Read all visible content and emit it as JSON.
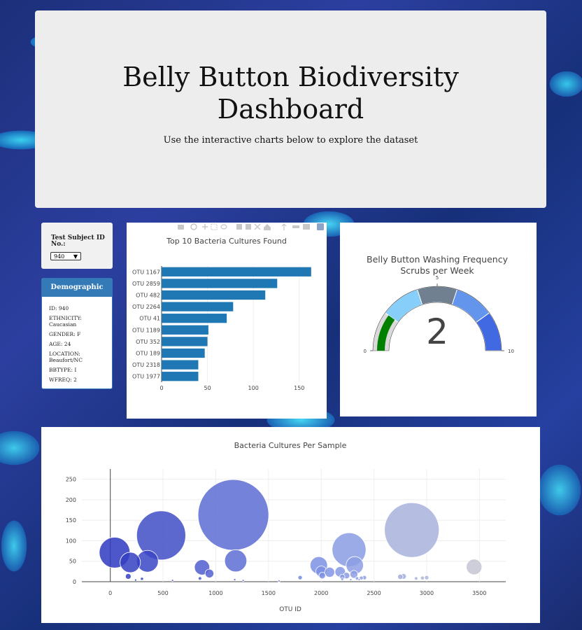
{
  "header": {
    "title": "Belly Button Biodiversity Dashboard",
    "subtitle": "Use the interactive charts below to explore the dataset"
  },
  "selector": {
    "label": "Test Subject ID No.:",
    "selected": "940"
  },
  "demographics": {
    "title": "Demographic Info",
    "rows": [
      "ID: 940",
      "ETHNICITY: Caucasian",
      "GENDER: F",
      "AGE: 24",
      "LOCATION: Beaufort/NC",
      "BBTYPE: I",
      "WFREQ: 2"
    ]
  },
  "colors": {
    "bar": "#1f77b4",
    "panel_head": "#337ab7",
    "gauge_needle": "#008000"
  },
  "chart_data": [
    {
      "type": "bar",
      "orientation": "horizontal",
      "title": "Top 10 Bacteria Cultures Found",
      "categories": [
        "OTU 1167",
        "OTU 2859",
        "OTU 482",
        "OTU 2264",
        "OTU 41",
        "OTU 1189",
        "OTU 352",
        "OTU 189",
        "OTU 2318",
        "OTU 1977"
      ],
      "values": [
        163,
        126,
        113,
        78,
        71,
        51,
        50,
        47,
        40,
        40
      ],
      "xticks": [
        0,
        50,
        100,
        150
      ],
      "xlim": [
        0,
        170
      ]
    },
    {
      "type": "gauge",
      "title": "Belly Button Washing Frequency",
      "subtitle": "Scrubs per Week",
      "value": 2,
      "range": [
        0,
        10
      ],
      "ticks": [
        0,
        5,
        10
      ],
      "steps": [
        {
          "range": [
            0,
            2
          ],
          "color": "#d9d9d9"
        },
        {
          "range": [
            2,
            4
          ],
          "color": "#87cefa"
        },
        {
          "range": [
            4,
            6
          ],
          "color": "#708090"
        },
        {
          "range": [
            6,
            8
          ],
          "color": "#6495ed"
        },
        {
          "range": [
            8,
            10
          ],
          "color": "#4169e1"
        }
      ]
    },
    {
      "type": "scatter",
      "title": "Bacteria Cultures Per Sample",
      "xlabel": "OTU ID",
      "xticks": [
        0,
        500,
        1000,
        1500,
        2000,
        2500,
        3000,
        3500
      ],
      "yticks": [
        0,
        50,
        100,
        150,
        200,
        250
      ],
      "xlim": [
        -270,
        3750
      ],
      "ylim": [
        0,
        275
      ],
      "points": [
        {
          "x": 41,
          "y": 71
        },
        {
          "x": 189,
          "y": 47
        },
        {
          "x": 352,
          "y": 50
        },
        {
          "x": 482,
          "y": 113
        },
        {
          "x": 1167,
          "y": 163
        },
        {
          "x": 1189,
          "y": 51
        },
        {
          "x": 2264,
          "y": 78
        },
        {
          "x": 2318,
          "y": 40
        },
        {
          "x": 2859,
          "y": 126
        },
        {
          "x": 1977,
          "y": 40
        },
        {
          "x": 3450,
          "y": 36
        },
        {
          "x": 870,
          "y": 35
        },
        {
          "x": 940,
          "y": 20
        },
        {
          "x": 2000,
          "y": 25
        },
        {
          "x": 2080,
          "y": 23
        },
        {
          "x": 2180,
          "y": 24
        },
        {
          "x": 2240,
          "y": 15
        },
        {
          "x": 2310,
          "y": 18
        },
        {
          "x": 2380,
          "y": 9
        },
        {
          "x": 2410,
          "y": 10
        },
        {
          "x": 170,
          "y": 13
        },
        {
          "x": 300,
          "y": 7
        },
        {
          "x": 850,
          "y": 8
        },
        {
          "x": 1180,
          "y": 5
        },
        {
          "x": 1260,
          "y": 3
        },
        {
          "x": 1800,
          "y": 10
        },
        {
          "x": 2010,
          "y": 15
        },
        {
          "x": 2200,
          "y": 12
        },
        {
          "x": 2750,
          "y": 12
        },
        {
          "x": 2780,
          "y": 13
        },
        {
          "x": 2900,
          "y": 8
        },
        {
          "x": 2960,
          "y": 9
        },
        {
          "x": 3000,
          "y": 10
        },
        {
          "x": 2200,
          "y": 6
        },
        {
          "x": 2280,
          "y": 5
        },
        {
          "x": 2340,
          "y": 8
        },
        {
          "x": 2360,
          "y": 5
        },
        {
          "x": 240,
          "y": 4
        },
        {
          "x": 590,
          "y": 3
        },
        {
          "x": 1600,
          "y": 2
        }
      ]
    }
  ]
}
